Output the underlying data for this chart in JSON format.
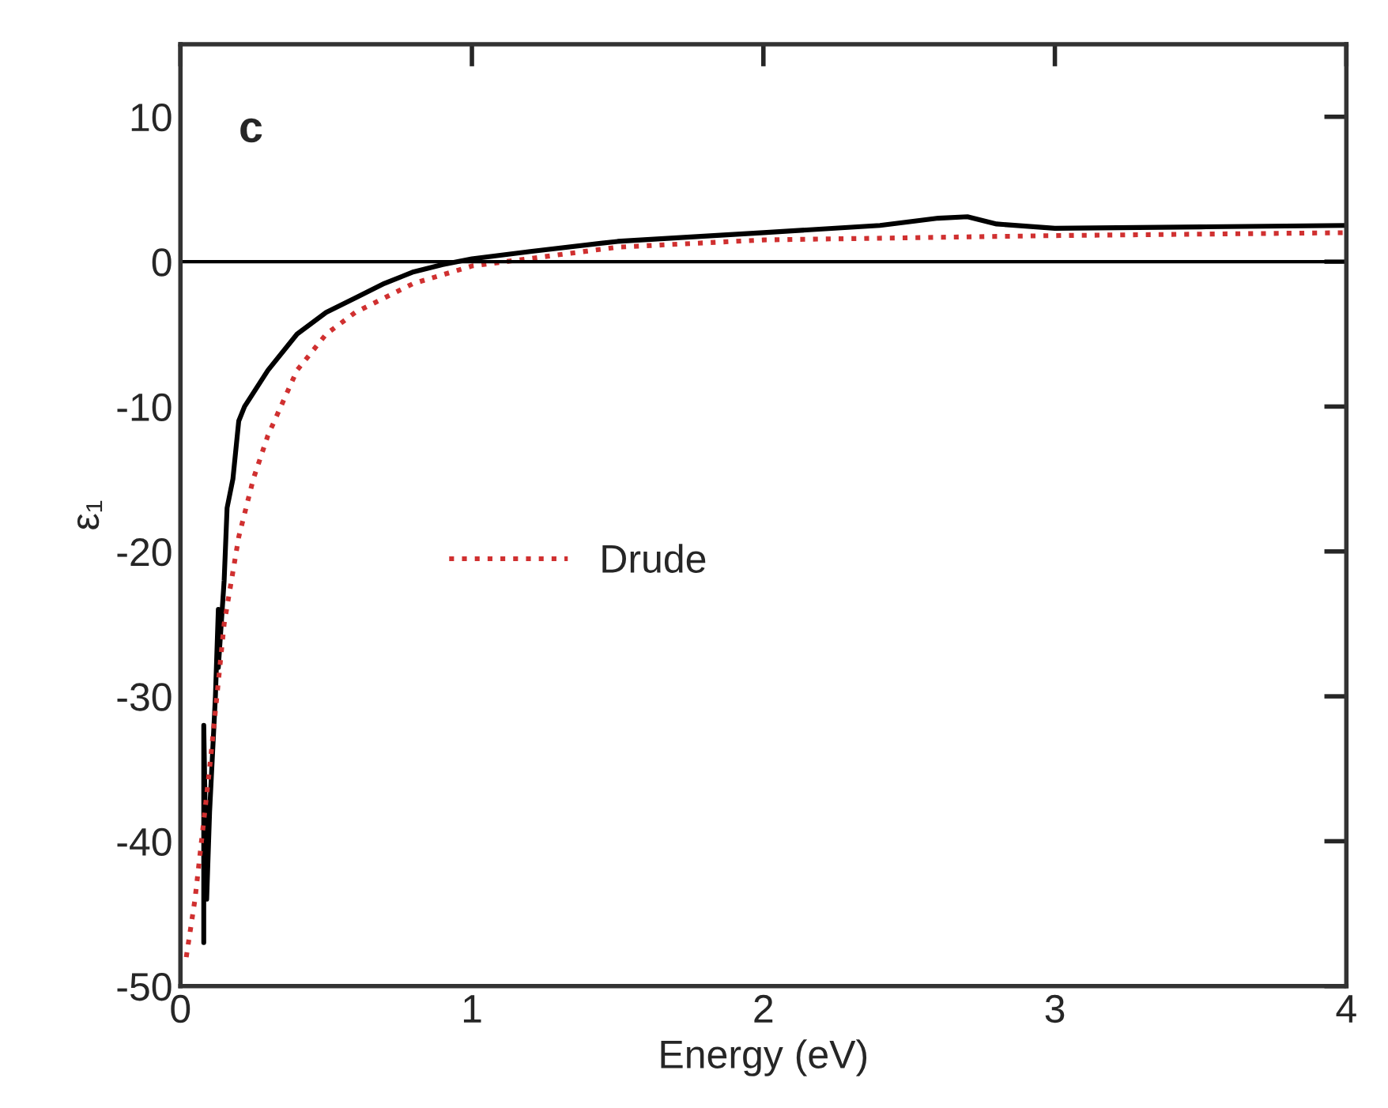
{
  "chart_data": {
    "type": "line",
    "xlabel": "Energy (eV)",
    "ylabel": "ε₁",
    "annotations": [
      "c"
    ],
    "xlim": [
      0,
      4
    ],
    "ylim": [
      -50,
      15
    ],
    "xticks": [
      0,
      1,
      2,
      3,
      4
    ],
    "yticks": [
      -50,
      -40,
      -30,
      -20,
      -10,
      0,
      10
    ],
    "grid": false,
    "legend": "center left",
    "marker": "none",
    "ref_lines": [
      {
        "axis": "y",
        "value": 0,
        "color": "#000000",
        "line_style": "solid"
      }
    ],
    "series": [
      {
        "color": "#000000",
        "line_style": "solid",
        "x": [
          0.08,
          0.08,
          0.09,
          0.1,
          0.12,
          0.13,
          0.13,
          0.15,
          0.16,
          0.18,
          0.2,
          0.22,
          0.3,
          0.4,
          0.5,
          0.6,
          0.7,
          0.8,
          0.9,
          1.0,
          1.2,
          1.5,
          2.0,
          2.4,
          2.6,
          2.7,
          2.8,
          3.0,
          3.5,
          4.0
        ],
        "values": [
          -47,
          -32,
          -44,
          -38,
          -30,
          -24,
          -28,
          -22,
          -17,
          -15,
          -11,
          -10,
          -7.5,
          -5,
          -3.5,
          -2.5,
          -1.5,
          -0.7,
          -0.2,
          0.2,
          0.7,
          1.4,
          2.0,
          2.5,
          3.0,
          3.1,
          2.6,
          2.3,
          2.4,
          2.5
        ]
      },
      {
        "name": "Drude",
        "color": "#d03030",
        "line_style": "dotted",
        "x": [
          0.02,
          0.05,
          0.1,
          0.15,
          0.2,
          0.25,
          0.3,
          0.4,
          0.5,
          0.6,
          0.8,
          1.0,
          1.5,
          2.0,
          3.0,
          4.0
        ],
        "values": [
          -48,
          -44,
          -35,
          -25,
          -19,
          -15,
          -12,
          -7.5,
          -5,
          -3.5,
          -1.5,
          -0.3,
          1.0,
          1.5,
          1.8,
          2.0
        ]
      }
    ]
  }
}
